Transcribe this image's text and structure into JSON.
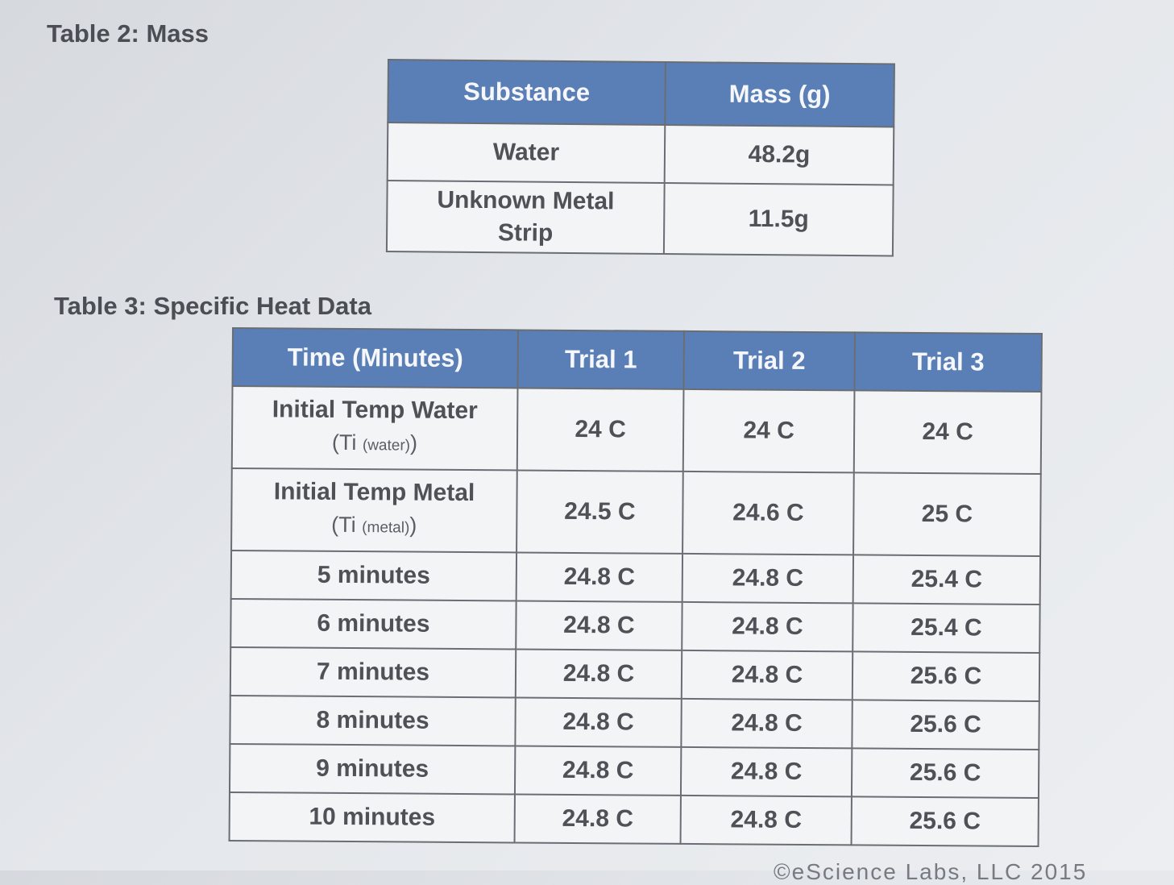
{
  "table2": {
    "caption": "Table 2: Mass",
    "headers": [
      "Substance",
      "Mass (g)"
    ],
    "rows": [
      [
        "Water",
        "48.2g"
      ],
      [
        "Unknown Metal Strip",
        "11.5g"
      ]
    ]
  },
  "table3": {
    "caption": "Table 3: Specific Heat Data",
    "headers": [
      "Time (Minutes)",
      "Trial 1",
      "Trial 2",
      "Trial 3"
    ],
    "rows": [
      {
        "label": "Initial Temp Water",
        "sub_symbol": "Ti",
        "sub_qualifier": "(water)",
        "values": [
          "24 C",
          "24 C",
          "24 C"
        ]
      },
      {
        "label": "Initial Temp Metal",
        "sub_symbol": "Ti",
        "sub_qualifier": "(metal)",
        "values": [
          "24.5 C",
          "24.6 C",
          "25 C"
        ]
      },
      {
        "label": "5 minutes",
        "values": [
          "24.8 C",
          "24.8 C",
          "25.4 C"
        ]
      },
      {
        "label": "6 minutes",
        "values": [
          "24.8 C",
          "24.8 C",
          "25.4 C"
        ]
      },
      {
        "label": "7 minutes",
        "values": [
          "24.8 C",
          "24.8 C",
          "25.6 C"
        ]
      },
      {
        "label": "8 minutes",
        "values": [
          "24.8 C",
          "24.8 C",
          "25.6 C"
        ]
      },
      {
        "label": "9 minutes",
        "values": [
          "24.8 C",
          "24.8 C",
          "25.6 C"
        ]
      },
      {
        "label": "10 minutes",
        "values": [
          "24.8 C",
          "24.8 C",
          "25.6 C"
        ]
      }
    ]
  },
  "footer": {
    "copyright": "©eScience Labs, LLC 2015"
  }
}
